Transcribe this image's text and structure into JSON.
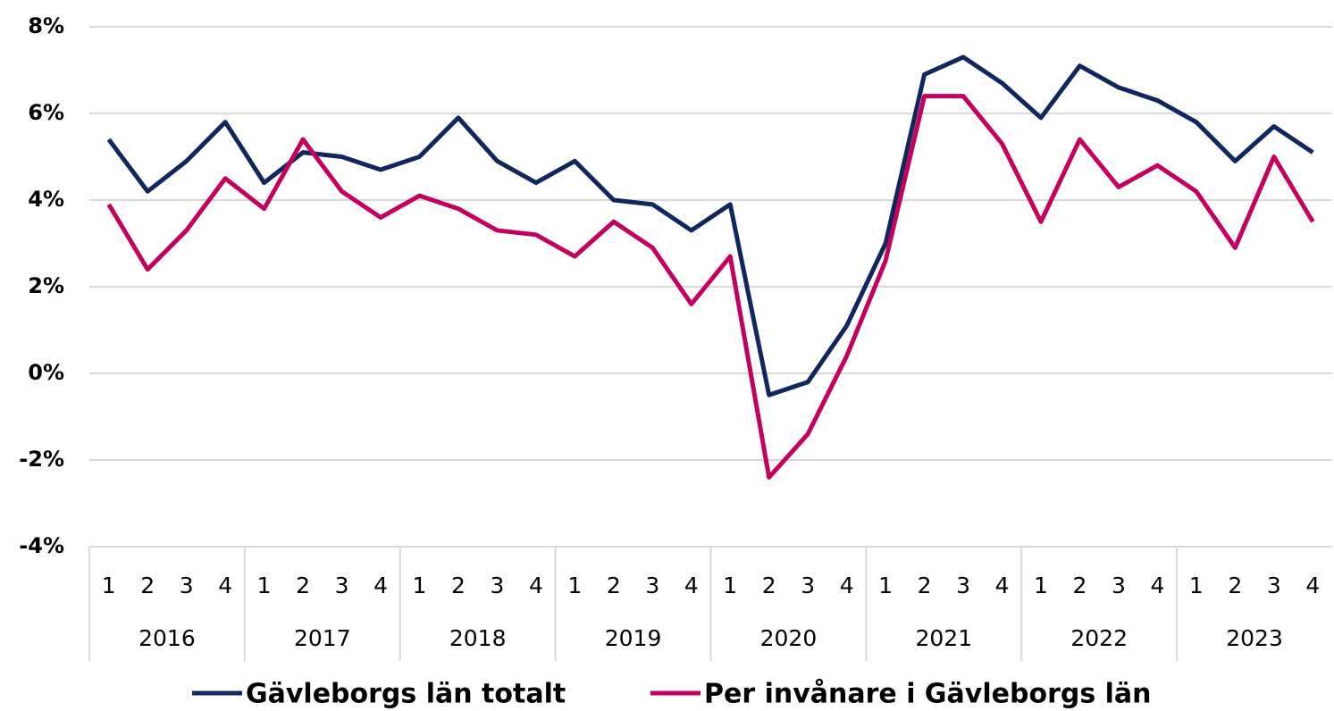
{
  "chart_data": {
    "type": "line",
    "categories": [
      "1",
      "2",
      "3",
      "4",
      "1",
      "2",
      "3",
      "4",
      "1",
      "2",
      "3",
      "4",
      "1",
      "2",
      "3",
      "4",
      "1",
      "2",
      "3",
      "4",
      "1",
      "2",
      "3",
      "4",
      "1",
      "2",
      "3",
      "4",
      "1",
      "2",
      "3",
      "4"
    ],
    "years": [
      "2016",
      "2017",
      "2018",
      "2019",
      "2020",
      "2021",
      "2022",
      "2023"
    ],
    "series": [
      {
        "name": "Gävleborgs län totalt",
        "color": "#10265c",
        "values": [
          5.4,
          4.2,
          4.9,
          5.8,
          4.4,
          5.1,
          5.0,
          4.7,
          5.0,
          5.9,
          4.9,
          4.4,
          4.9,
          4.0,
          3.9,
          3.3,
          3.9,
          -0.5,
          -0.2,
          1.1,
          3.0,
          6.9,
          7.3,
          6.7,
          5.9,
          7.1,
          6.6,
          6.3,
          5.8,
          4.9,
          5.7,
          5.1
        ]
      },
      {
        "name": "Per invånare i Gävleborgs län",
        "color": "#c4005f",
        "values": [
          3.9,
          2.4,
          3.3,
          4.5,
          3.8,
          5.4,
          4.2,
          3.6,
          4.1,
          3.8,
          3.3,
          3.2,
          2.7,
          3.5,
          2.9,
          1.6,
          2.7,
          -2.4,
          -1.4,
          0.4,
          2.6,
          6.4,
          6.4,
          5.3,
          3.5,
          5.4,
          4.3,
          4.8,
          4.2,
          2.9,
          5.0,
          3.5
        ]
      }
    ],
    "ylim": [
      -4,
      8
    ],
    "yticks": [
      {
        "value": -4,
        "label": "-4%"
      },
      {
        "value": -2,
        "label": "-2%"
      },
      {
        "value": 0,
        "label": "0%"
      },
      {
        "value": 2,
        "label": "2%"
      },
      {
        "value": 4,
        "label": "4%"
      },
      {
        "value": 6,
        "label": "6%"
      },
      {
        "value": 8,
        "label": "8%"
      }
    ],
    "grid": true,
    "legend": "bottom"
  }
}
